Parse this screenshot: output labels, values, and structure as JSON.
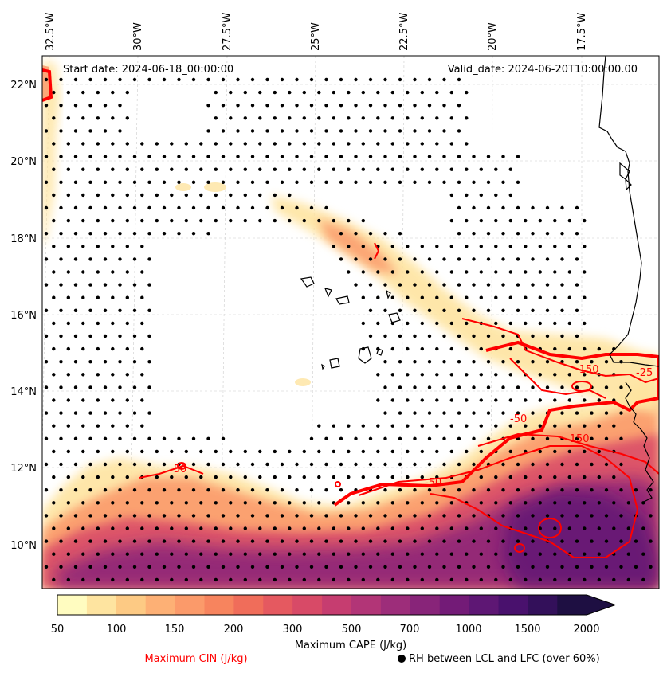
{
  "map": {
    "start_date": "Start date: 2024-06-18_00:00:00",
    "valid_date": "Valid_date: 2024-06-20T10:00:00.00",
    "lon_ticks": [
      "32.5°W",
      "30°W",
      "27.5°W",
      "25°W",
      "22.5°W",
      "20°W",
      "17.5°W"
    ],
    "lat_ticks": [
      "22°N",
      "20°N",
      "18°N",
      "16°N",
      "14°N",
      "12°N",
      "10°N"
    ],
    "cin_contour_labels": [
      "-50",
      "-50",
      "-150",
      "-150",
      "-25",
      "-50"
    ],
    "colors": {
      "cin_contour": "#ff0000",
      "coast": "#000000",
      "dots": "#000000"
    }
  },
  "colorbar": {
    "label": "Maximum CAPE (J/kg)",
    "ticks": [
      "50",
      "100",
      "150",
      "200",
      "300",
      "500",
      "700",
      "1000",
      "1500",
      "2000"
    ],
    "colors": [
      "#fffcc0",
      "#fee4a0",
      "#fdca84",
      "#fdb075",
      "#fb9a6a",
      "#f7845e",
      "#f06d5a",
      "#e55960",
      "#d84a67",
      "#c63d70",
      "#b23577",
      "#9d2d7a",
      "#882479",
      "#731b77",
      "#5e1774",
      "#49116d",
      "#33105a",
      "#1e0f42"
    ]
  },
  "legend": {
    "cin_label": "Maximum CIN (J/kg)",
    "rh_label": "RH between LCL and LFC (over 60%)",
    "cin_color": "#ff0000"
  }
}
